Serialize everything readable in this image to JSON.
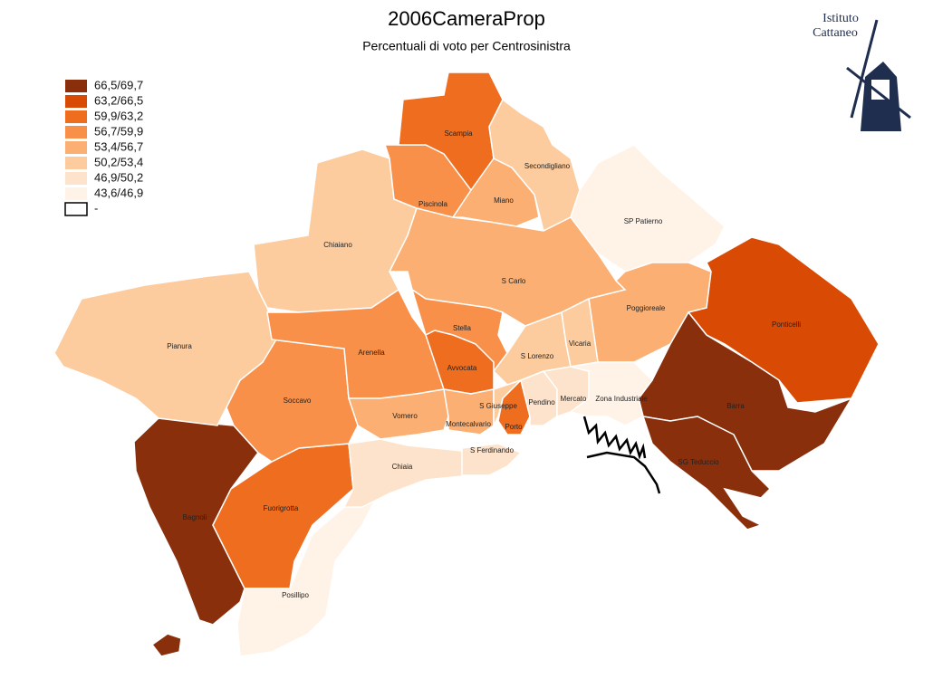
{
  "title": "2006CameraProp",
  "subtitle": "Percentuali di voto per Centrosinistra",
  "logo": {
    "line1": "Istituto",
    "line2": "Cattaneo"
  },
  "legend": [
    {
      "label": "66,5/69,7",
      "color": "#8a2f0c"
    },
    {
      "label": "63,2/66,5",
      "color": "#d94b05"
    },
    {
      "label": "59,9/63,2",
      "color": "#ee6d1f"
    },
    {
      "label": "56,7/59,9",
      "color": "#f8904a"
    },
    {
      "label": "53,4/56,7",
      "color": "#fbaf72"
    },
    {
      "label": "50,2/53,4",
      "color": "#fccc9f"
    },
    {
      "label": "46,9/50,2",
      "color": "#fde3cb"
    },
    {
      "label": "43,6/46,9",
      "color": "#fff3e8"
    },
    {
      "label": "-"
    }
  ],
  "regions": [
    {
      "name": "Bagnoli",
      "class": 0
    },
    {
      "name": "Fuorigrotta",
      "class": 2
    },
    {
      "name": "Posillipo",
      "class": 7
    },
    {
      "name": "Chiaia",
      "class": 6
    },
    {
      "name": "S Ferdinando",
      "class": 6
    },
    {
      "name": "Soccavo",
      "class": 3
    },
    {
      "name": "Pianura",
      "class": 5
    },
    {
      "name": "Chiaiano",
      "class": 5
    },
    {
      "name": "Arenella",
      "class": 3
    },
    {
      "name": "Vomero",
      "class": 4
    },
    {
      "name": "Piscinola",
      "class": 3
    },
    {
      "name": "Scampia",
      "class": 2
    },
    {
      "name": "Miano",
      "class": 4
    },
    {
      "name": "Secondigliano",
      "class": 5
    },
    {
      "name": "SP Patierno",
      "class": 7
    },
    {
      "name": "S Carlo",
      "class": 4
    },
    {
      "name": "Poggioreale",
      "class": 4
    },
    {
      "name": "Ponticelli",
      "class": 1
    },
    {
      "name": "Barra",
      "class": 0
    },
    {
      "name": "SG Teduccio",
      "class": 0
    },
    {
      "name": "Stella",
      "class": 3
    },
    {
      "name": "Avvocata",
      "class": 2
    },
    {
      "name": "S Lorenzo",
      "class": 5
    },
    {
      "name": "Vicaria",
      "class": 5
    },
    {
      "name": "Montecalvario",
      "class": 4
    },
    {
      "name": "S Giuseppe",
      "class": 5
    },
    {
      "name": "Porto",
      "class": 2
    },
    {
      "name": "Pendino",
      "class": 6
    },
    {
      "name": "Mercato",
      "class": 6
    },
    {
      "name": "Zona Industriale",
      "class": 7
    }
  ]
}
